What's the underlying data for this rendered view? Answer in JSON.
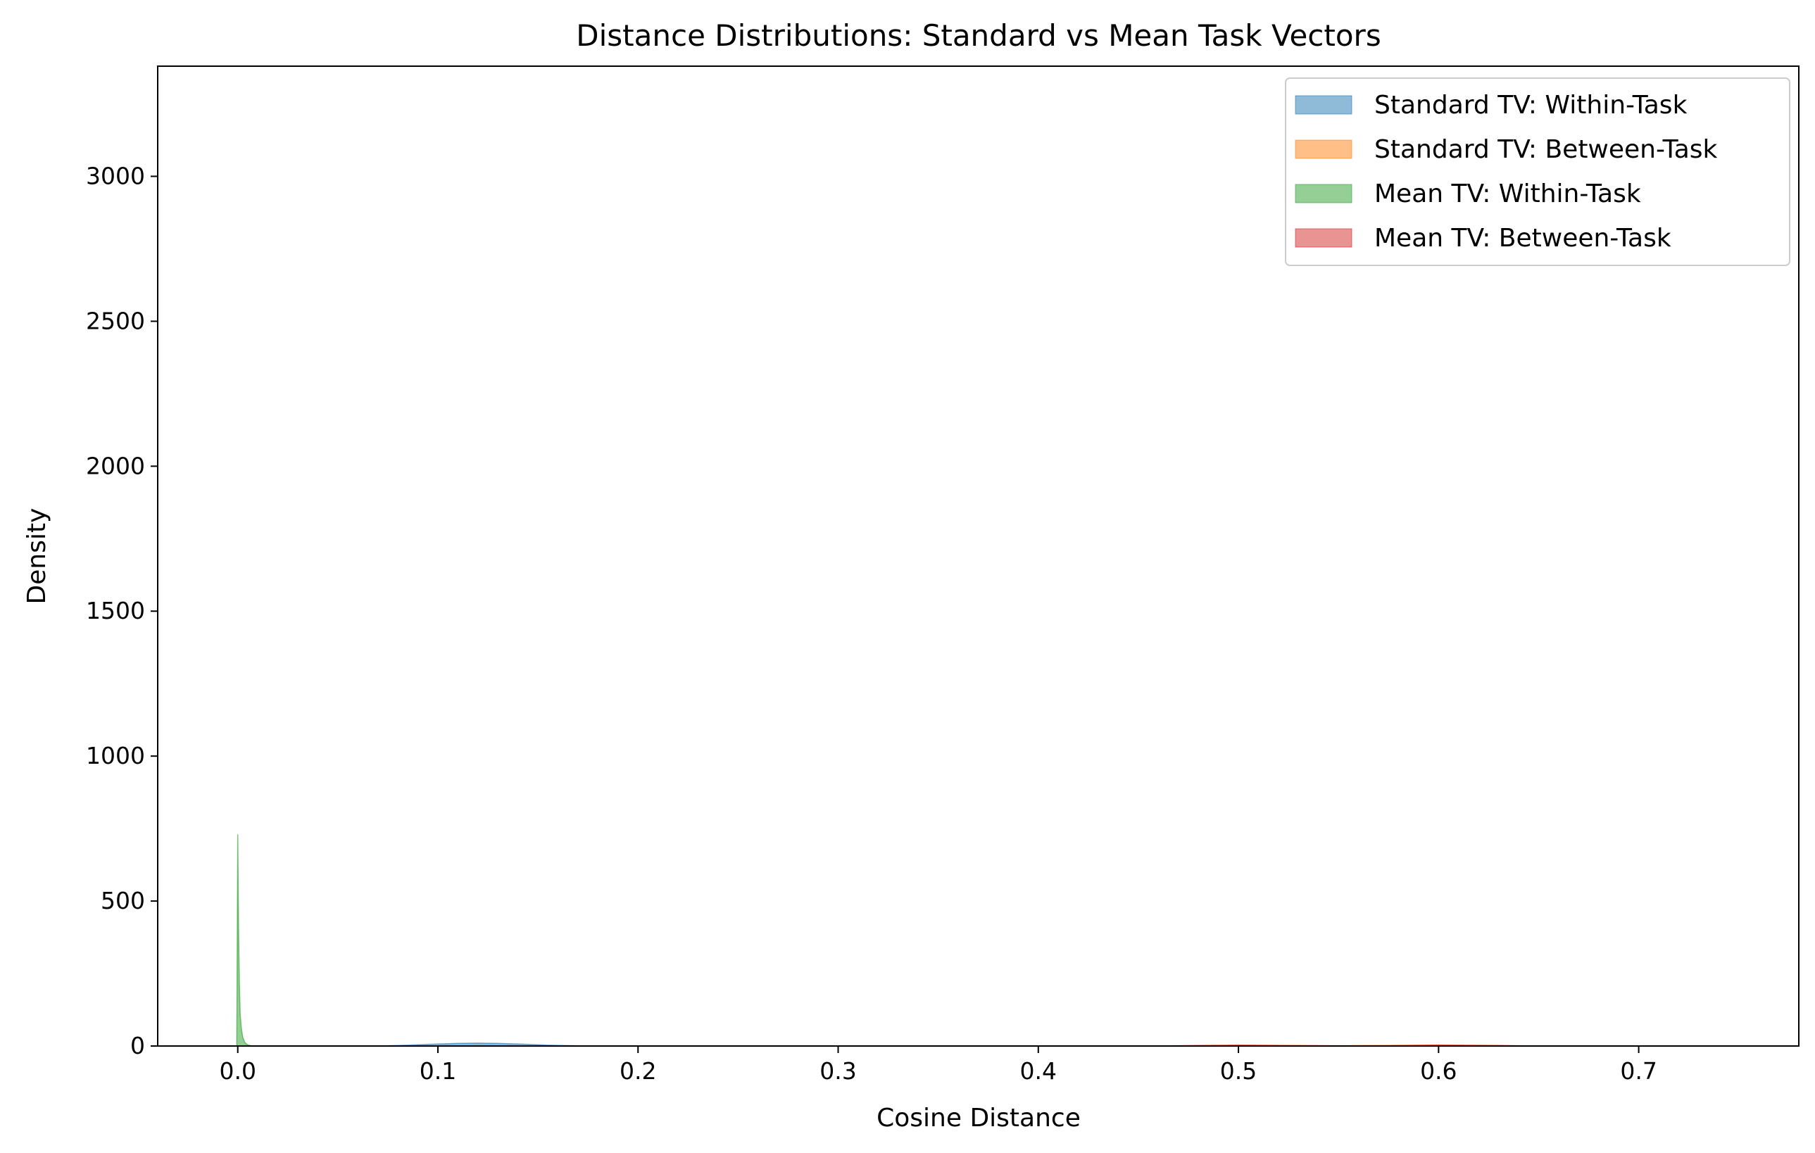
{
  "chart_data": {
    "type": "area",
    "title": "Distance Distributions: Standard vs Mean Task Vectors",
    "xlabel": "Cosine Distance",
    "ylabel": "Density",
    "xlim": [
      -0.04,
      0.78
    ],
    "ylim": [
      0,
      3380
    ],
    "xticks": [
      0.0,
      0.1,
      0.2,
      0.3,
      0.4,
      0.5,
      0.6,
      0.7
    ],
    "xtick_labels": [
      "0.0",
      "0.1",
      "0.2",
      "0.3",
      "0.4",
      "0.5",
      "0.6",
      "0.7"
    ],
    "yticks": [
      0,
      500,
      1000,
      1500,
      2000,
      2500,
      3000
    ],
    "ytick_labels": [
      "0",
      "500",
      "1000",
      "1500",
      "2000",
      "2500",
      "3000"
    ],
    "grid": false,
    "legend_position": "top-right",
    "series": [
      {
        "name": "Standard TV: Within-Task",
        "color": "#1f77b4",
        "x": [
          0.07,
          0.085,
          0.1,
          0.11,
          0.12,
          0.13,
          0.14,
          0.155,
          0.175
        ],
        "y": [
          0,
          3,
          7,
          9,
          10,
          9,
          7,
          3,
          0
        ]
      },
      {
        "name": "Standard TV: Between-Task",
        "color": "#ff7f0e",
        "x": [
          0.47,
          0.5,
          0.52,
          0.55,
          0.58,
          0.6,
          0.62,
          0.645
        ],
        "y": [
          0,
          3,
          2,
          1,
          3,
          4,
          2,
          0
        ]
      },
      {
        "name": "Mean TV: Within-Task",
        "color": "#2ca02c",
        "x": [
          -0.0005,
          0.0,
          0.0004,
          0.0008,
          0.0012,
          0.0018,
          0.0025,
          0.0035,
          0.005,
          0.007
        ],
        "y": [
          0,
          730,
          400,
          220,
          110,
          60,
          30,
          12,
          4,
          0
        ]
      },
      {
        "name": "Mean TV: Between-Task",
        "color": "#d62728",
        "x": [
          0.46,
          0.48,
          0.5,
          0.52,
          0.57,
          0.6,
          0.63,
          0.65
        ],
        "y": [
          0,
          2,
          3,
          2,
          0,
          3,
          2,
          0
        ]
      }
    ]
  }
}
